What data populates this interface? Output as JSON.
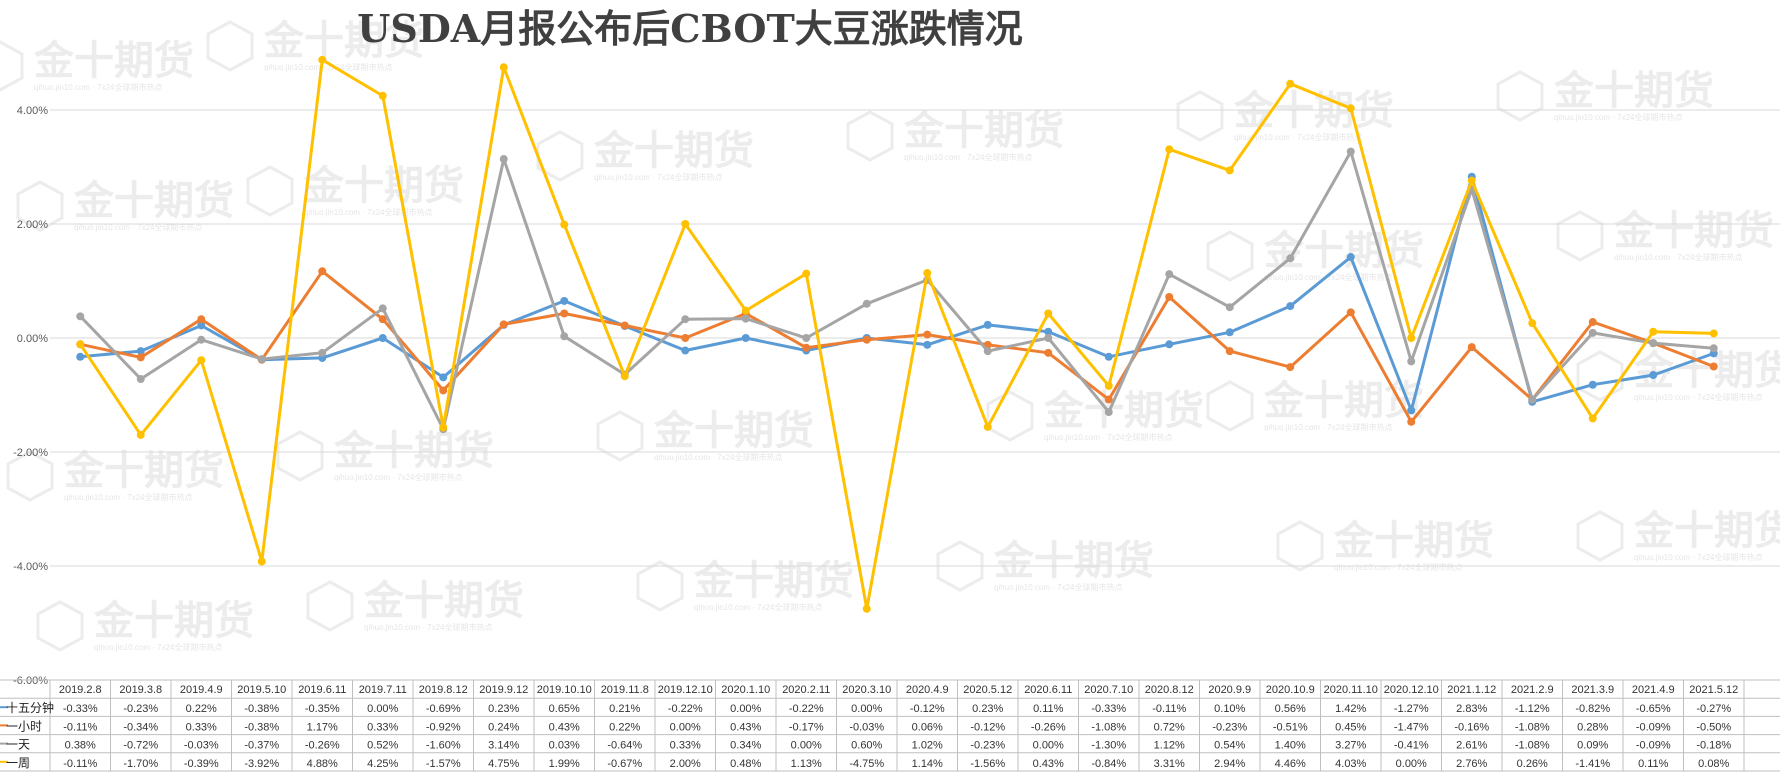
{
  "watermark": {
    "brand": "金十期货",
    "subtext": "qihuo.jin10.com · 7x24全球期市热点"
  },
  "chart_data": {
    "type": "line",
    "title": "USDA月报公布后CBOT大豆涨跌情况",
    "ylim": [
      -6.0,
      5.0
    ],
    "yticks": [
      -6.0,
      -4.0,
      -2.0,
      0.0,
      2.0,
      4.0
    ],
    "ytick_labels": [
      "-6.00%",
      "-4.00%",
      "-2.00%",
      "0.00%",
      "2.00%",
      "4.00%"
    ],
    "grid": true,
    "legend": "data-table",
    "categories": [
      "2019.2.8",
      "2019.3.8",
      "2019.4.9",
      "2019.5.10",
      "2019.6.11",
      "2019.7.11",
      "2019.8.12",
      "2019.9.12",
      "2019.10.10",
      "2019.11.8",
      "2019.12.10",
      "2020.1.10",
      "2020.2.11",
      "2020.3.10",
      "2020.4.9",
      "2020.5.12",
      "2020.6.11",
      "2020.7.10",
      "2020.8.12",
      "2020.9.9",
      "2020.10.9",
      "2020.11.10",
      "2020.12.10",
      "2021.1.12",
      "2021.2.9",
      "2021.3.9",
      "2021.4.9",
      "2021.5.12"
    ],
    "series": [
      {
        "name": "十五分钟",
        "color": "#5b9bd5",
        "values": [
          -0.33,
          -0.23,
          0.22,
          -0.38,
          -0.35,
          0.0,
          -0.69,
          0.23,
          0.65,
          0.21,
          -0.22,
          0.0,
          -0.22,
          0.0,
          -0.12,
          0.23,
          0.11,
          -0.33,
          -0.11,
          0.1,
          0.56,
          1.42,
          -1.27,
          2.83,
          -1.12,
          -0.82,
          -0.65,
          -0.27
        ],
        "labels": [
          "-0.33%",
          "-0.23%",
          "0.22%",
          "-0.38%",
          "-0.35%",
          "0.00%",
          "-0.69%",
          "0.23%",
          "0.65%",
          "0.21%",
          "-0.22%",
          "0.00%",
          "-0.22%",
          "0.00%",
          "-0.12%",
          "0.23%",
          "0.11%",
          "-0.33%",
          "-0.11%",
          "0.10%",
          "0.56%",
          "1.42%",
          "-1.27%",
          "2.83%",
          "-1.12%",
          "-0.82%",
          "-0.65%",
          "-0.27%"
        ]
      },
      {
        "name": "一小时",
        "color": "#ed7d31",
        "values": [
          -0.11,
          -0.34,
          0.33,
          -0.38,
          1.17,
          0.33,
          -0.92,
          0.24,
          0.43,
          0.22,
          0.0,
          0.43,
          -0.17,
          -0.03,
          0.06,
          -0.12,
          -0.26,
          -1.08,
          0.72,
          -0.23,
          -0.51,
          0.45,
          -1.47,
          -0.16,
          -1.08,
          0.28,
          -0.09,
          -0.5
        ],
        "labels": [
          "-0.11%",
          "-0.34%",
          "0.33%",
          "-0.38%",
          "1.17%",
          "0.33%",
          "-0.92%",
          "0.24%",
          "0.43%",
          "0.22%",
          "0.00%",
          "0.43%",
          "-0.17%",
          "-0.03%",
          "0.06%",
          "-0.12%",
          "-0.26%",
          "-1.08%",
          "0.72%",
          "-0.23%",
          "-0.51%",
          "0.45%",
          "-1.47%",
          "-0.16%",
          "-1.08%",
          "0.28%",
          "-0.09%",
          "-0.50%"
        ]
      },
      {
        "name": "一天",
        "color": "#a5a5a5",
        "values": [
          0.38,
          -0.72,
          -0.03,
          -0.37,
          -0.26,
          0.52,
          -1.6,
          3.14,
          0.03,
          -0.64,
          0.33,
          0.34,
          0.0,
          0.6,
          1.02,
          -0.23,
          0.0,
          -1.3,
          1.12,
          0.54,
          1.4,
          3.27,
          -0.41,
          2.61,
          -1.08,
          0.09,
          -0.09,
          -0.18
        ],
        "labels": [
          "0.38%",
          "-0.72%",
          "-0.03%",
          "-0.37%",
          "-0.26%",
          "0.52%",
          "-1.60%",
          "3.14%",
          "0.03%",
          "-0.64%",
          "0.33%",
          "0.34%",
          "0.00%",
          "0.60%",
          "1.02%",
          "-0.23%",
          "0.00%",
          "-1.30%",
          "1.12%",
          "0.54%",
          "1.40%",
          "3.27%",
          "-0.41%",
          "2.61%",
          "-1.08%",
          "0.09%",
          "-0.09%",
          "-0.18%"
        ]
      },
      {
        "name": "一周",
        "color": "#ffc000",
        "values": [
          -0.11,
          -1.7,
          -0.39,
          -3.92,
          4.88,
          4.25,
          -1.57,
          4.75,
          1.99,
          -0.67,
          2.0,
          0.48,
          1.13,
          -4.75,
          1.14,
          -1.56,
          0.43,
          -0.84,
          3.31,
          2.94,
          4.46,
          4.03,
          0.0,
          2.76,
          0.26,
          -1.41,
          0.11,
          0.08
        ],
        "labels": [
          "-0.11%",
          "-1.70%",
          "-0.39%",
          "-3.92%",
          "4.88%",
          "4.25%",
          "-1.57%",
          "4.75%",
          "1.99%",
          "-0.67%",
          "2.00%",
          "0.48%",
          "1.13%",
          "-4.75%",
          "1.14%",
          "-1.56%",
          "0.43%",
          "-0.84%",
          "3.31%",
          "2.94%",
          "4.46%",
          "4.03%",
          "0.00%",
          "2.76%",
          "0.26%",
          "-1.41%",
          "0.11%",
          "0.08%"
        ]
      }
    ]
  }
}
